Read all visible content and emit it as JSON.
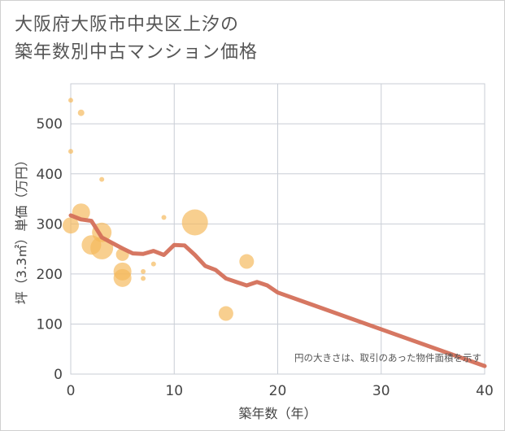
{
  "chart_data": {
    "type": "scatter",
    "title": "大阪府大阪市中央区上汐の\n築年数別中古マンション価格",
    "xlabel": "築年数（年）",
    "ylabel": "坪（3.3㎡）単価（万円）",
    "xlim": [
      0,
      40
    ],
    "ylim": [
      0,
      580
    ],
    "xticks": [
      0,
      10,
      20,
      30,
      40
    ],
    "yticks": [
      0,
      100,
      200,
      300,
      400,
      500
    ],
    "grid": true,
    "note": "円の大きさは、取引のあった物件面積を示す",
    "bubble_color": "#f5b85a",
    "line_color": "#d4705a",
    "bubbles": [
      {
        "x": 0,
        "y": 547,
        "s": 3
      },
      {
        "x": 0,
        "y": 445,
        "s": 3
      },
      {
        "x": 0,
        "y": 297,
        "s": 10
      },
      {
        "x": 1,
        "y": 522,
        "s": 4
      },
      {
        "x": 1,
        "y": 323,
        "s": 11
      },
      {
        "x": 2,
        "y": 258,
        "s": 12
      },
      {
        "x": 3,
        "y": 389,
        "s": 3
      },
      {
        "x": 3,
        "y": 283,
        "s": 12
      },
      {
        "x": 3,
        "y": 252,
        "s": 14
      },
      {
        "x": 5,
        "y": 239,
        "s": 8
      },
      {
        "x": 5,
        "y": 205,
        "s": 11
      },
      {
        "x": 5,
        "y": 192,
        "s": 11
      },
      {
        "x": 7,
        "y": 205,
        "s": 3
      },
      {
        "x": 7,
        "y": 191,
        "s": 3
      },
      {
        "x": 8,
        "y": 220,
        "s": 3
      },
      {
        "x": 9,
        "y": 313,
        "s": 3
      },
      {
        "x": 12,
        "y": 303,
        "s": 16
      },
      {
        "x": 15,
        "y": 121,
        "s": 9
      },
      {
        "x": 17,
        "y": 225,
        "s": 9
      }
    ],
    "line": {
      "x": [
        0,
        1,
        2,
        3,
        4,
        5,
        6,
        7,
        8,
        9,
        10,
        11,
        12,
        13,
        14,
        15,
        16,
        17,
        18,
        19,
        20,
        40
      ],
      "y": [
        317,
        309,
        306,
        273,
        262,
        251,
        241,
        240,
        246,
        238,
        258,
        257,
        238,
        216,
        208,
        191,
        184,
        177,
        184,
        177,
        163,
        16
      ]
    }
  }
}
